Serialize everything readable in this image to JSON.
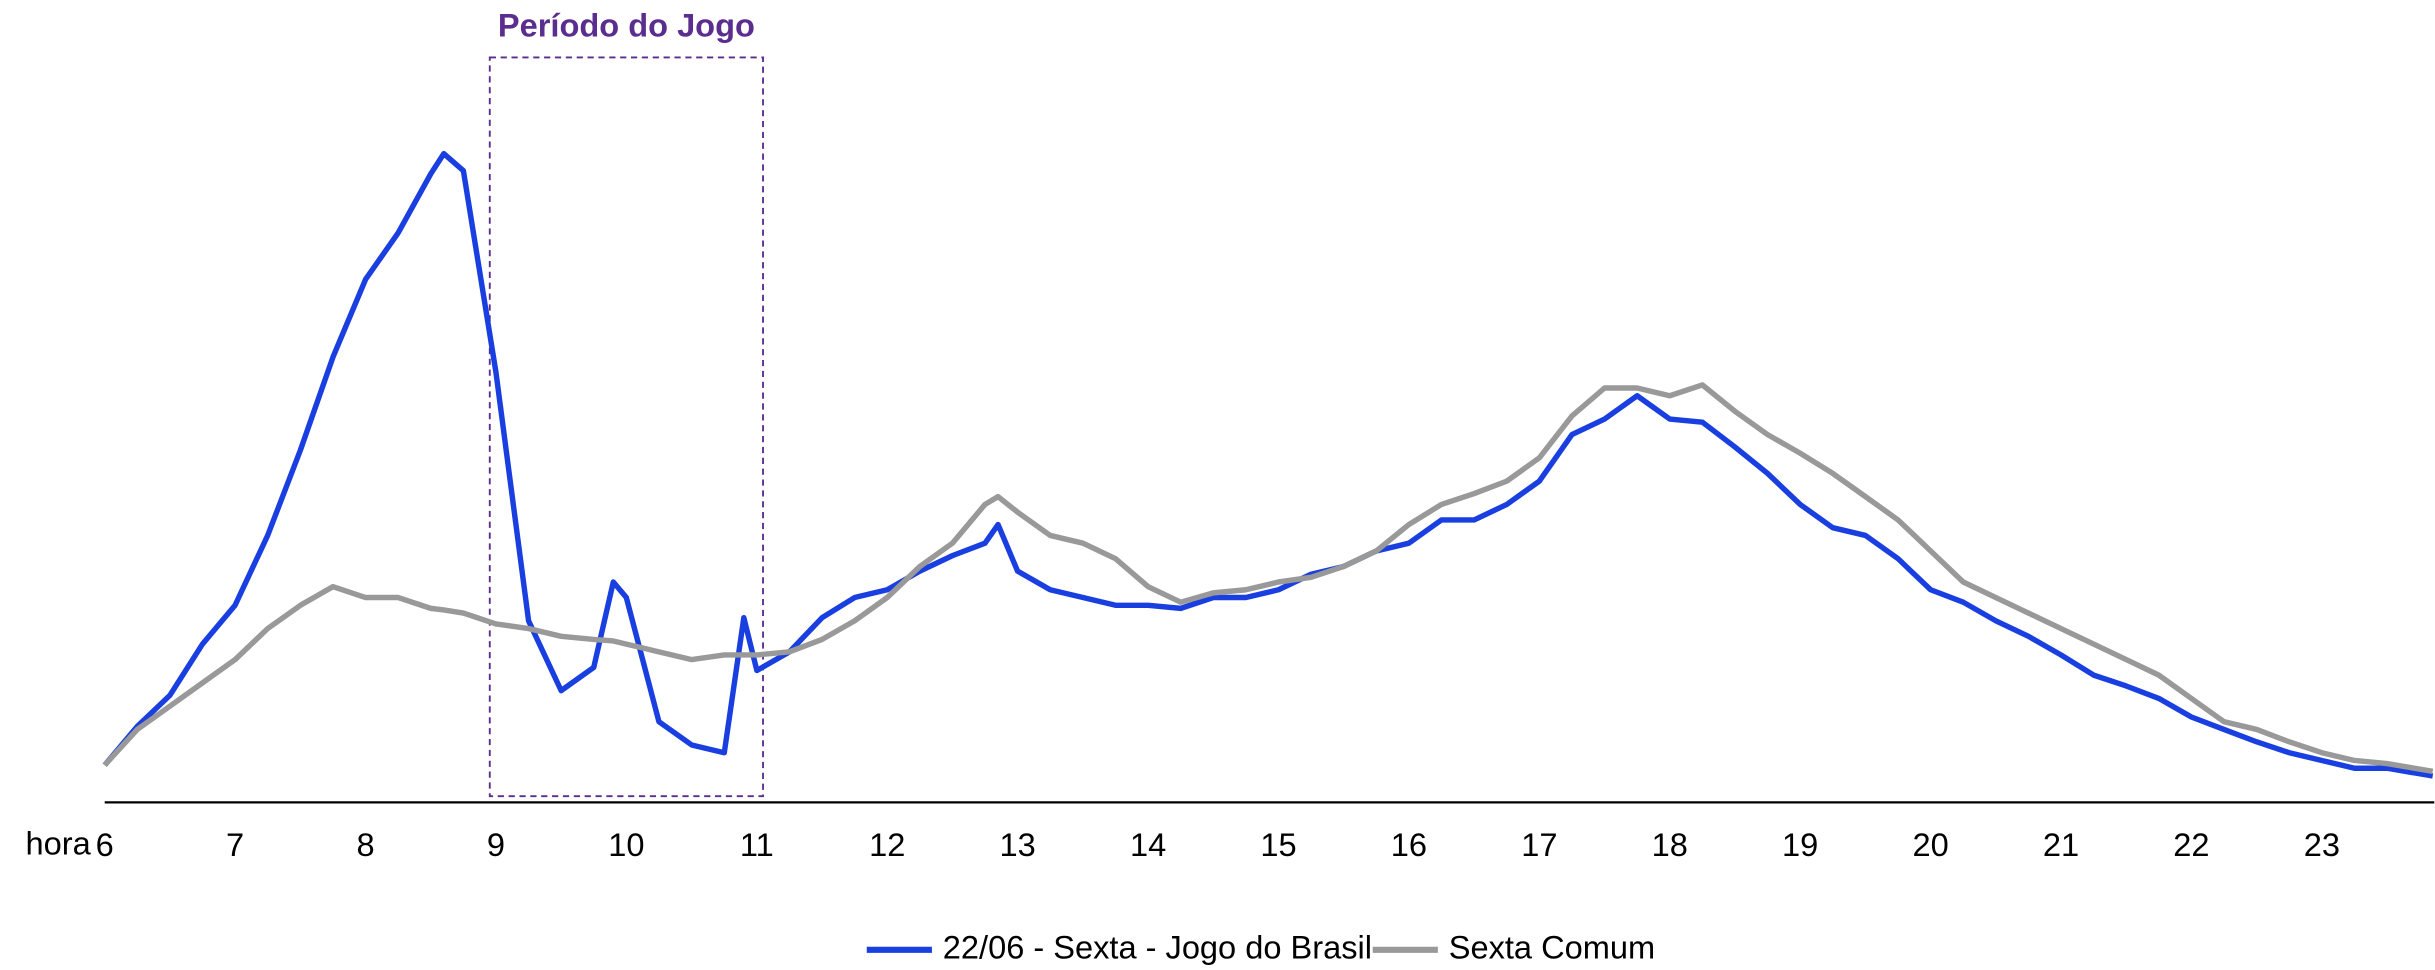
{
  "chart_data": {
    "type": "line",
    "annotation": {
      "text": "Período do Jogo",
      "x": [
        9,
        11
      ],
      "color": "#5b2d8e"
    },
    "x_label": "hora",
    "x": [
      6,
      6.25,
      6.5,
      6.75,
      7,
      7.25,
      7.5,
      7.75,
      8,
      8.25,
      8.5,
      8.6,
      8.75,
      9,
      9.25,
      9.5,
      9.75,
      9.9,
      10,
      10.25,
      10.5,
      10.75,
      10.9,
      11,
      11.25,
      11.5,
      11.75,
      12,
      12.25,
      12.5,
      12.75,
      12.85,
      13,
      13.25,
      13.5,
      13.75,
      14,
      14.25,
      14.5,
      14.75,
      15,
      15.25,
      15.5,
      15.75,
      16,
      16.25,
      16.5,
      16.75,
      17,
      17.25,
      17.5,
      17.75,
      18,
      18.25,
      18.5,
      18.75,
      19,
      19.25,
      19.5,
      19.75,
      20,
      20.25,
      20.5,
      20.75,
      21,
      21.25,
      21.5,
      21.75,
      22,
      22.25,
      22.5,
      22.75,
      23,
      23.25,
      23.5,
      23.85
    ],
    "series": [
      {
        "name": "22/06 - Sexta - Jogo do Brasil",
        "color": "#1a3fe0",
        "values": [
          24,
          49,
          69,
          102,
          127,
          172,
          227,
          287,
          337,
          367,
          405,
          418,
          407,
          277,
          117,
          72,
          87,
          142,
          132,
          52,
          37,
          32,
          119,
          85,
          97,
          119,
          132,
          137,
          149,
          159,
          167,
          179,
          149,
          137,
          132,
          127,
          127,
          125,
          132,
          132,
          137,
          147,
          152,
          162,
          167,
          182,
          182,
          192,
          207,
          237,
          247,
          262,
          247,
          245,
          229,
          212,
          192,
          177,
          172,
          157,
          137,
          129,
          117,
          107,
          95,
          82,
          75,
          67,
          55,
          47,
          39,
          32,
          27,
          22,
          22,
          17
        ]
      },
      {
        "name": "Sexta Comum",
        "color": "#999999",
        "values": [
          24,
          47,
          62,
          77,
          92,
          112,
          127,
          139,
          132,
          132,
          125,
          124,
          122,
          115,
          112,
          107,
          105,
          104,
          102,
          97,
          92,
          95,
          95,
          95,
          97,
          105,
          117,
          132,
          152,
          167,
          192,
          197,
          187,
          172,
          167,
          157,
          139,
          129,
          135,
          137,
          142,
          145,
          152,
          162,
          179,
          192,
          199,
          207,
          222,
          249,
          267,
          267,
          262,
          269,
          252,
          237,
          225,
          212,
          197,
          182,
          162,
          142,
          132,
          122,
          112,
          102,
          92,
          82,
          67,
          52,
          47,
          39,
          32,
          27,
          25,
          20
        ]
      }
    ],
    "xlim": [
      6,
      23.85
    ],
    "xticks": [
      6,
      7,
      8,
      9,
      10,
      11,
      12,
      13,
      14,
      15,
      16,
      17,
      18,
      19,
      20,
      21,
      22,
      23
    ],
    "ylim": [
      0,
      500
    ],
    "legend": "bottom"
  }
}
